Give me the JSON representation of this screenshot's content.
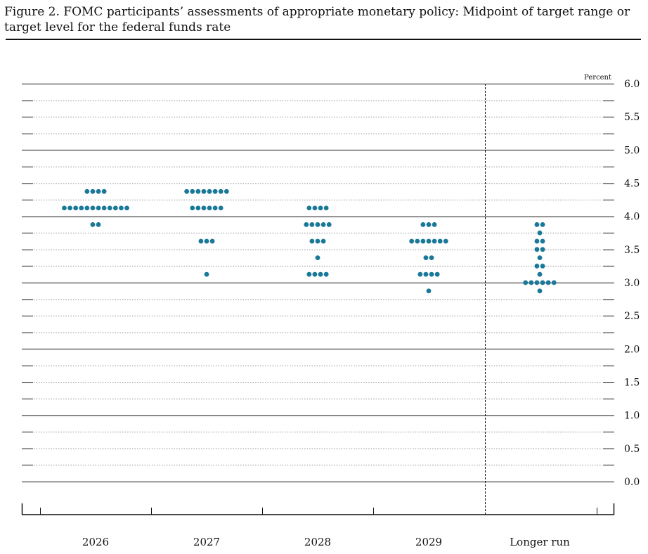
{
  "figure": {
    "title": "Figure 2. FOMC participants’ assessments of appropriate monetary policy: Midpoint of target range or target level for the federal funds rate"
  },
  "chart_data": {
    "type": "scatter",
    "subtype": "dot-plot",
    "categories": [
      "2026",
      "2027",
      "2028",
      "2029",
      "Longer run"
    ],
    "y_unit_label": "Percent",
    "ylim": [
      0.0,
      6.0
    ],
    "y_ticks": [
      "0.0",
      "0.5",
      "1.0",
      "1.5",
      "2.0",
      "2.5",
      "3.0",
      "3.5",
      "4.0",
      "4.5",
      "5.0",
      "5.5",
      "6.0"
    ],
    "dot_color": "#1a7898",
    "dots": [
      {
        "category": "2026",
        "points": [
          {
            "y": 4.375,
            "count": 4
          },
          {
            "y": 4.125,
            "count": 12
          },
          {
            "y": 3.875,
            "count": 2
          }
        ]
      },
      {
        "category": "2027",
        "points": [
          {
            "y": 4.375,
            "count": 8
          },
          {
            "y": 4.125,
            "count": 6
          },
          {
            "y": 3.625,
            "count": 3
          },
          {
            "y": 3.125,
            "count": 1
          }
        ]
      },
      {
        "category": "2028",
        "points": [
          {
            "y": 4.125,
            "count": 4
          },
          {
            "y": 3.875,
            "count": 5
          },
          {
            "y": 3.625,
            "count": 3
          },
          {
            "y": 3.375,
            "count": 1
          },
          {
            "y": 3.125,
            "count": 4
          }
        ]
      },
      {
        "category": "2029",
        "points": [
          {
            "y": 3.875,
            "count": 3
          },
          {
            "y": 3.625,
            "count": 7
          },
          {
            "y": 3.375,
            "count": 2
          },
          {
            "y": 3.125,
            "count": 4
          },
          {
            "y": 2.875,
            "count": 1
          }
        ]
      },
      {
        "category": "Longer run",
        "points": [
          {
            "y": 3.875,
            "count": 2
          },
          {
            "y": 3.75,
            "count": 1
          },
          {
            "y": 3.625,
            "count": 2
          },
          {
            "y": 3.5,
            "count": 2
          },
          {
            "y": 3.375,
            "count": 1
          },
          {
            "y": 3.25,
            "count": 2
          },
          {
            "y": 3.125,
            "count": 1
          },
          {
            "y": 3.0,
            "count": 6
          },
          {
            "y": 2.875,
            "count": 1
          }
        ]
      }
    ],
    "grid": true
  }
}
